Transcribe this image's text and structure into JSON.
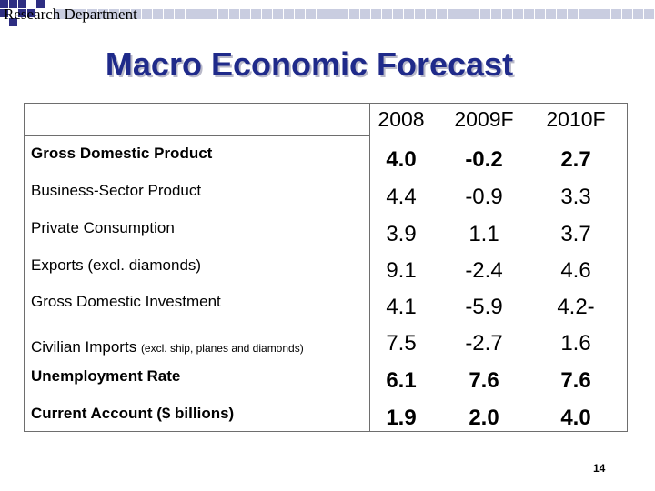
{
  "header": {
    "department": "Research Department"
  },
  "slide": {
    "title": "Macro Economic Forecast",
    "page_number": "14"
  },
  "table": {
    "years": [
      "2008",
      "2009F",
      "2010F"
    ],
    "rows": [
      {
        "label": "Gross Domestic Product",
        "suffix": "",
        "bold": true,
        "values": [
          "4.0",
          "-0.2",
          "2.7"
        ]
      },
      {
        "label": "Business-Sector Product",
        "suffix": "",
        "bold": false,
        "values": [
          "4.4",
          "-0.9",
          "3.3"
        ]
      },
      {
        "label": "Private Consumption",
        "suffix": "",
        "bold": false,
        "values": [
          "3.9",
          "1.1",
          "3.7"
        ]
      },
      {
        "label": "Exports (excl. diamonds)",
        "suffix": "",
        "bold": false,
        "values": [
          "9.1",
          "-2.4",
          "4.6"
        ]
      },
      {
        "label": "Gross Domestic Investment",
        "suffix": "",
        "bold": false,
        "values": [
          "4.1",
          "-5.9",
          "4.2-"
        ]
      },
      {
        "label": "Civilian Imports",
        "suffix": "(excl. ship, planes and diamonds)",
        "bold": false,
        "values": [
          "7.5",
          "-2.7",
          "1.6"
        ]
      },
      {
        "label": "Unemployment Rate",
        "suffix": "",
        "bold": true,
        "values": [
          "6.1",
          "7.6",
          "7.6"
        ]
      },
      {
        "label": "Current Account ($ billions)",
        "suffix": "",
        "bold": true,
        "values": [
          "1.9",
          "2.0",
          "4.0"
        ]
      }
    ]
  },
  "colors": {
    "title": "#1f2a8a",
    "banner_dark": "#2e2e82",
    "banner_light": "#c9cde0"
  }
}
